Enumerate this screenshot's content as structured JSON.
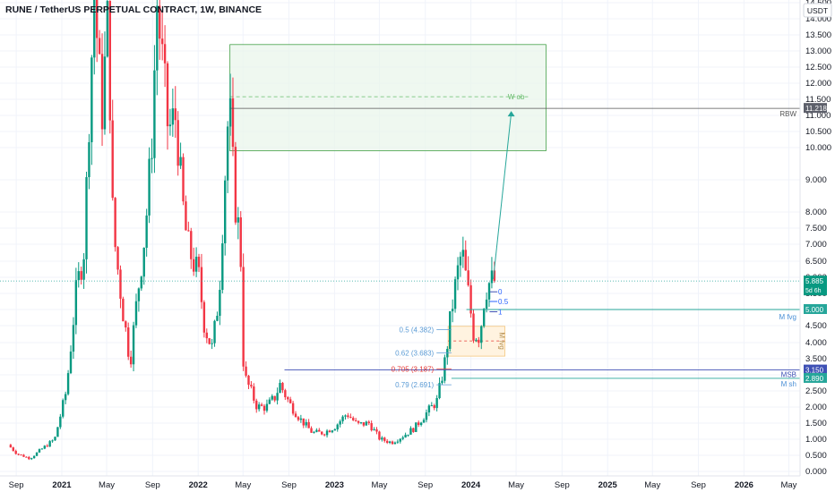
{
  "chart_title": "RUNE / TetherUS PERPETUAL CONTRACT, 1W, BINANCE",
  "currency_label": "USDT",
  "colors": {
    "up": "#089981",
    "down": "#f23645",
    "grid": "#f0f3fa",
    "zone_fill": "#e8f5e9",
    "zone_border": "#43a047",
    "fvg_fill": "#fff3e0",
    "fvg_border": "#f5c77e",
    "teal": "#26a69a",
    "blue": "#2962ff",
    "fib": "#5b9bd5",
    "fib_red": "#e53935"
  },
  "chart_data": {
    "type": "candlestick",
    "title": "RUNE / TetherUS PERPETUAL CONTRACT, 1W, BINANCE",
    "ylim": [
      0,
      15
    ],
    "yticks": [
      "0.000",
      "0.500",
      "1.000",
      "1.500",
      "2.000",
      "2.500",
      "3.000",
      "3.500",
      "4.000",
      "4.500",
      "5.000",
      "5.500",
      "6.000",
      "6.500",
      "7.000",
      "7.500",
      "8.000",
      "9.000",
      "10.000",
      "10.500",
      "11.000",
      "11.500",
      "12.000",
      "12.500",
      "13.000",
      "13.500",
      "14.000",
      "14.500"
    ],
    "xticks": [
      "Sep",
      "2021",
      "May",
      "Sep",
      "2022",
      "May",
      "Sep",
      "2023",
      "May",
      "Sep",
      "2024",
      "May",
      "Sep",
      "2025",
      "May",
      "Sep",
      "2026",
      "May"
    ],
    "price_path": [
      [
        "2020-08-15",
        0.85
      ],
      [
        "2020-09-10",
        0.55
      ],
      [
        "2020-10-15",
        0.4
      ],
      [
        "2020-11-10",
        0.65
      ],
      [
        "2020-12-20",
        1.0
      ],
      [
        "2021-01-20",
        2.5
      ],
      [
        "2021-02-15",
        5.5
      ],
      [
        "2021-03-10",
        7.0
      ],
      [
        "2021-03-20",
        10.5
      ],
      [
        "2021-04-05",
        14.8
      ],
      [
        "2021-04-25",
        11.0
      ],
      [
        "2021-05-12",
        14.2
      ],
      [
        "2021-05-25",
        7.5
      ],
      [
        "2021-06-20",
        5.0
      ],
      [
        "2021-07-10",
        3.4
      ],
      [
        "2021-07-30",
        5.5
      ],
      [
        "2021-08-20",
        7.5
      ],
      [
        "2021-09-05",
        10.0
      ],
      [
        "2021-09-20",
        14.5
      ],
      [
        "2021-10-05",
        12.5
      ],
      [
        "2021-10-20",
        10.5
      ],
      [
        "2021-11-10",
        11.0
      ],
      [
        "2021-11-25",
        8.5
      ],
      [
        "2021-12-10",
        7.0
      ],
      [
        "2022-01-10",
        6.0
      ],
      [
        "2022-01-25",
        4.5
      ],
      [
        "2022-02-15",
        3.8
      ],
      [
        "2022-03-05",
        5.5
      ],
      [
        "2022-03-20",
        9.0
      ],
      [
        "2022-04-01",
        11.5
      ],
      [
        "2022-04-15",
        8.5
      ],
      [
        "2022-05-01",
        7.0
      ],
      [
        "2022-05-10",
        3.0
      ],
      [
        "2022-05-25",
        2.6
      ],
      [
        "2022-06-15",
        2.0
      ],
      [
        "2022-07-10",
        2.0
      ],
      [
        "2022-08-01",
        2.3
      ],
      [
        "2022-08-15",
        2.7
      ],
      [
        "2022-09-10",
        2.1
      ],
      [
        "2022-10-10",
        1.6
      ],
      [
        "2022-11-10",
        1.2
      ],
      [
        "2022-12-10",
        1.2
      ],
      [
        "2023-01-10",
        1.4
      ],
      [
        "2023-02-10",
        1.8
      ],
      [
        "2023-03-10",
        1.45
      ],
      [
        "2023-04-10",
        1.5
      ],
      [
        "2023-05-10",
        1.0
      ],
      [
        "2023-06-10",
        0.9
      ],
      [
        "2023-07-10",
        1.1
      ],
      [
        "2023-08-10",
        1.35
      ],
      [
        "2023-09-10",
        1.8
      ],
      [
        "2023-10-10",
        2.2
      ],
      [
        "2023-11-01",
        3.5
      ],
      [
        "2023-11-15",
        4.8
      ],
      [
        "2023-12-01",
        6.0
      ],
      [
        "2023-12-15",
        6.8
      ],
      [
        "2024-01-01",
        5.5
      ],
      [
        "2024-01-15",
        4.3
      ],
      [
        "2024-02-01",
        4.2
      ],
      [
        "2024-02-15",
        5.6
      ],
      [
        "2024-03-01",
        5.89
      ]
    ],
    "last_price": "5.885",
    "countdown": "5d 6h"
  },
  "annotations": {
    "w_ob": "W ob",
    "rbw": "RBW",
    "rbw_price": "11.218",
    "m_fvg": "M fvg",
    "m_fvg_price": "5.000",
    "msb": "MSB",
    "msb_price": "3.150",
    "m_sh": "M sh",
    "m_sh_price": "2.890",
    "fvg_box_label": "M fvg",
    "fib_labels": [
      "0.5 (4.382)",
      "0.62 (3.683)",
      "0.705 (3.187)",
      "0.79 (2.691)"
    ],
    "target_labels": [
      "0",
      "0.5",
      "1"
    ]
  }
}
